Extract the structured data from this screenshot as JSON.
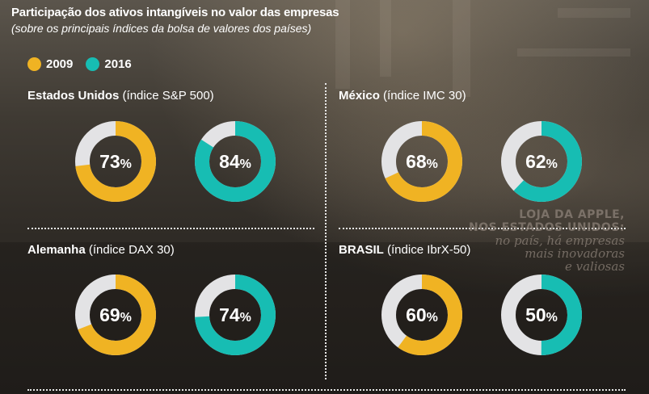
{
  "header": {
    "title": "Participação dos ativos intangíveis no valor das empresas",
    "subtitle": "(sobre os principais índices da bolsa de valores dos países)"
  },
  "legend": [
    {
      "label": "2009",
      "color": "#F0B323"
    },
    {
      "label": "2016",
      "color": "#17BDB3"
    }
  ],
  "photo_caption": {
    "line1": "LOJA DA APPLE,",
    "line2": "NOS ESTADOS UNIDOS:",
    "line3": "no país, há empresas",
    "line4": "mais inovadoras",
    "line5": "e valiosas"
  },
  "chart_data": {
    "type": "donut",
    "track_color": "#E3E3E5",
    "value_unit": "%",
    "series_names": [
      "2009",
      "2016"
    ],
    "series_colors": [
      "#F0B323",
      "#17BDB3"
    ],
    "panels": [
      {
        "country": "Estados Unidos",
        "index": "(índice S&P 500)",
        "values": [
          73,
          84
        ],
        "labels": [
          "73",
          "84"
        ]
      },
      {
        "country": "México",
        "index": "(índice IMC 30)",
        "values": [
          68,
          62
        ],
        "labels": [
          "68",
          "62"
        ]
      },
      {
        "country": "Alemanha",
        "index": "(índice DAX 30)",
        "values": [
          69,
          74
        ],
        "labels": [
          "69",
          "74"
        ]
      },
      {
        "country": "BRASIL",
        "index": "(índice IbrX-50)",
        "values": [
          60,
          50
        ],
        "labels": [
          "60",
          "50"
        ]
      }
    ]
  }
}
